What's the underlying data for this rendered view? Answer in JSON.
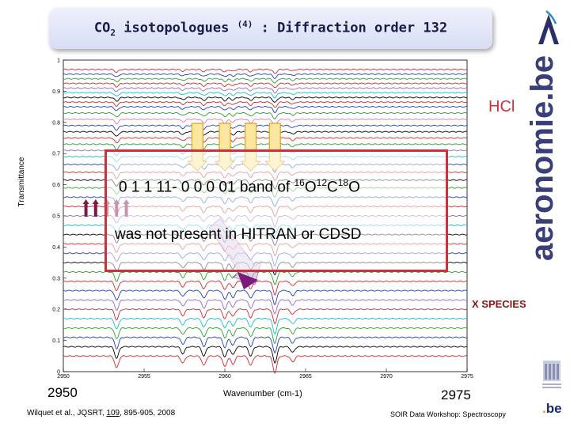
{
  "title": {
    "prefix": "CO",
    "subscript": "2",
    "word": " isotopologues ",
    "ref": "(4)",
    "suffix": " : Diffraction order 132"
  },
  "y_axis_label": "Transmittance",
  "x_axis_label": "Wavenumber (cm-1)",
  "x_range_left": "2950",
  "x_range_right": "2975",
  "annotations": {
    "band_line": {
      "a": "0 1 1 11- 0 0 0 01 band of ",
      "i1": "16",
      "e1": "O",
      "i2": "12",
      "e2": "C",
      "i3": "18",
      "e3": "O"
    },
    "band_note": "was not present in HITRAN or CDSD",
    "hcl": "HCl",
    "x_species": "X SPECIES"
  },
  "footer": {
    "citation_before": "Wilquet et al., JQSRT, ",
    "citation_volume": "109",
    "citation_after": ", 895-905, 2008",
    "workshop": "SOIR Data Workshop: Spectroscopy"
  },
  "brand": "aeronomie.be",
  "logo_be": {
    "text": "be",
    "dot": "."
  },
  "colors": {
    "overlay_border": "#d0303a",
    "hcl_text": "#d0303a",
    "x_species_text": "#8a1510",
    "brand": "#3a3f7a"
  },
  "chart_data": {
    "type": "line",
    "xlim": [
      2950,
      2975
    ],
    "ylim": [
      0,
      1
    ],
    "x_ticks": [
      "2950",
      "2955",
      "2960",
      "2965",
      "2970",
      "2975"
    ],
    "y_ticks": [
      "0",
      "0.1",
      "0.2",
      "0.3",
      "0.4",
      "0.5",
      "0.6",
      "0.7",
      "0.8",
      "0.9",
      "1"
    ],
    "grid": false,
    "baselines": [
      0.97,
      0.955,
      0.94,
      0.925,
      0.91,
      0.895,
      0.88,
      0.865,
      0.85,
      0.83,
      0.81,
      0.79,
      0.77,
      0.75,
      0.73,
      0.71,
      0.69,
      0.665,
      0.64,
      0.615,
      0.59,
      0.56,
      0.53,
      0.5,
      0.47,
      0.44,
      0.41,
      0.38,
      0.35,
      0.32,
      0.29,
      0.26,
      0.23,
      0.2,
      0.17,
      0.14,
      0.11,
      0.08,
      0.05
    ],
    "series_colors": [
      "#d62728",
      "#1f3fbf",
      "#2ca02c",
      "#d62728",
      "#9467bd",
      "#17becf",
      "#000000",
      "#d62728",
      "#1f3fbf",
      "#2ca02c",
      "#e377c2",
      "#1f3fbf",
      "#000000",
      "#d62728",
      "#2ca02c",
      "#9467bd",
      "#17becf",
      "#1f3fbf",
      "#d62728",
      "#000000",
      "#2ca02c",
      "#1f3fbf",
      "#d62728",
      "#9467bd",
      "#17becf",
      "#000000",
      "#d62728",
      "#1f3fbf",
      "#000000",
      "#2ca02c",
      "#d62728",
      "#1f3fbf",
      "#9467bd",
      "#d62728",
      "#17becf",
      "#2ca02c",
      "#1f3fbf",
      "#000000",
      "#d62728"
    ],
    "absorption_lines": [
      {
        "x": 2953.3,
        "depth": 0.02
      },
      {
        "x": 2957.4,
        "depth": 0.012
      },
      {
        "x": 2958.7,
        "depth": 0.016
      },
      {
        "x": 2960.0,
        "depth": 0.018
      },
      {
        "x": 2960.5,
        "depth": 0.014
      },
      {
        "x": 2961.6,
        "depth": 0.016
      },
      {
        "x": 2963.1,
        "depth": 0.028
      },
      {
        "x": 2964.2,
        "depth": 0.01
      }
    ],
    "down_arrow_x": [
      2958.3,
      2960.0,
      2961.6,
      2963.1
    ],
    "up_arrow_x": [
      2951.4,
      2952.0,
      2952.7,
      2953.3,
      2953.9
    ]
  }
}
